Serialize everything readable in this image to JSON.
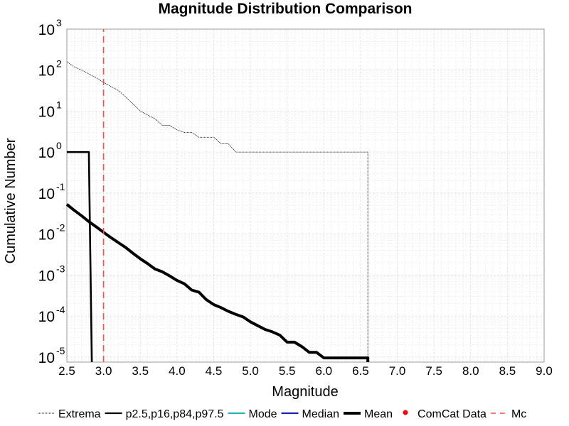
{
  "chart_data": {
    "type": "line",
    "title": "Magnitude Distribution Comparison",
    "xlabel": "Magnitude",
    "ylabel": "Cumulative Number",
    "xlim": [
      2.5,
      9.0
    ],
    "ylim": [
      7.5e-06,
      1000
    ],
    "yscale": "log",
    "grid": true,
    "legend_position": "bottom",
    "x_ticks": [
      "2.5",
      "3.0",
      "3.5",
      "4.0",
      "4.5",
      "5.0",
      "5.5",
      "6.0",
      "6.5",
      "7.0",
      "7.5",
      "8.0",
      "8.5",
      "9.0"
    ],
    "y_ticks": [
      {
        "value": 1e-05,
        "base": "10",
        "exp": "-5"
      },
      {
        "value": 0.0001,
        "base": "10",
        "exp": "-4"
      },
      {
        "value": 0.001,
        "base": "10",
        "exp": "-3"
      },
      {
        "value": 0.01,
        "base": "10",
        "exp": "-2"
      },
      {
        "value": 0.1,
        "base": "10",
        "exp": "-1"
      },
      {
        "value": 1,
        "base": "10",
        "exp": "0"
      },
      {
        "value": 10,
        "base": "10",
        "exp": "1"
      },
      {
        "value": 100,
        "base": "10",
        "exp": "2"
      },
      {
        "value": 1000,
        "base": "10",
        "exp": "3"
      }
    ],
    "series": [
      {
        "name": "Extrema",
        "color": "#000000",
        "style": "dotted",
        "x": [
          2.5,
          2.6,
          2.7,
          2.8,
          2.9,
          3.0,
          3.1,
          3.2,
          3.3,
          3.4,
          3.5,
          3.6,
          3.7,
          3.8,
          3.9,
          4.0,
          4.1,
          4.2,
          4.3,
          4.4,
          4.5,
          4.6,
          4.7,
          4.8,
          4.9,
          5.0,
          5.5,
          6.0,
          6.5,
          6.6,
          6.6
        ],
        "y": [
          160,
          120,
          100,
          80,
          65,
          50,
          40,
          32,
          22,
          15,
          10,
          8,
          6.5,
          4.5,
          4.5,
          3.5,
          3,
          3,
          2.3,
          2.3,
          2.3,
          1.6,
          1.6,
          1,
          1,
          1,
          1,
          1,
          1,
          1,
          7.5e-06
        ]
      },
      {
        "name": "p2.5,p16,p84,p97.5",
        "color": "#000000",
        "style": "solid",
        "x": [
          2.5,
          2.8,
          2.8,
          2.84
        ],
        "y": [
          1,
          1,
          0.8,
          7.5e-06
        ]
      },
      {
        "name": "Mean",
        "color": "#000000",
        "style": "solid-thick",
        "x": [
          2.5,
          2.6,
          2.7,
          2.8,
          2.9,
          3.0,
          3.1,
          3.2,
          3.3,
          3.4,
          3.5,
          3.6,
          3.7,
          3.8,
          3.9,
          4.0,
          4.1,
          4.2,
          4.3,
          4.4,
          4.5,
          4.6,
          4.7,
          4.8,
          4.9,
          5.0,
          5.1,
          5.2,
          5.3,
          5.4,
          5.5,
          5.6,
          5.7,
          5.8,
          5.9,
          6.0,
          6.1,
          6.2,
          6.3,
          6.4,
          6.5,
          6.6,
          6.6
        ],
        "y": [
          0.053,
          0.038,
          0.028,
          0.02,
          0.015,
          0.011,
          0.0082,
          0.0062,
          0.0047,
          0.0034,
          0.0025,
          0.0019,
          0.0014,
          0.0012,
          0.00095,
          0.00074,
          0.00061,
          0.00043,
          0.00038,
          0.00025,
          0.00019,
          0.00016,
          0.00013,
          0.00011,
          9.5e-05,
          7.2e-05,
          5.8e-05,
          4.7e-05,
          4.1e-05,
          3.4e-05,
          2.3e-05,
          2.3e-05,
          1.8e-05,
          1.3e-05,
          1.3e-05,
          9.5e-06,
          9.5e-06,
          9.5e-06,
          9.5e-06,
          9.5e-06,
          9.5e-06,
          9.5e-06,
          7.5e-06
        ]
      },
      {
        "name": "Mc",
        "color": "#ff4d4d",
        "style": "dashed",
        "x": [
          3.0,
          3.0
        ],
        "y": [
          7.5e-06,
          1000
        ]
      }
    ],
    "legend": [
      {
        "label": "Extrema",
        "color": "#000000",
        "kind": "dotted"
      },
      {
        "label": "p2.5,p16,p84,p97.5",
        "color": "#000000",
        "kind": "solid"
      },
      {
        "label": "Mode",
        "color": "#26b3b3",
        "kind": "solid"
      },
      {
        "label": "Median",
        "color": "#1f1fb3",
        "kind": "solid"
      },
      {
        "label": "Mean",
        "color": "#000000",
        "kind": "thick"
      },
      {
        "label": "ComCat Data",
        "color": "#ff0000",
        "kind": "dot"
      },
      {
        "label": "Mc",
        "color": "#ff4d4d",
        "kind": "dashed"
      }
    ]
  }
}
